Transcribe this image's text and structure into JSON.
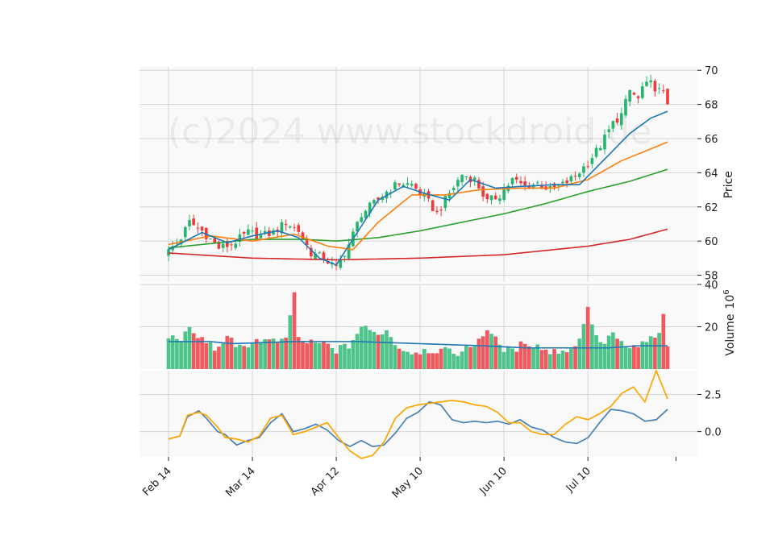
{
  "watermark": "(c)2024 www.stockdroid.de",
  "chart_data": {
    "type": "candlestick",
    "x_ticks": [
      "Feb 14",
      "Mar 14",
      "Apr 12",
      "May 10",
      "Jun 10",
      "Jul 10"
    ],
    "x_tick_index": [
      0,
      20,
      40,
      60,
      80,
      100
    ],
    "n_days": 120,
    "price_panel": {
      "ylabel": "Price",
      "ylim": [
        57.6,
        70.2
      ],
      "yticks": [
        58,
        60,
        62,
        64,
        66,
        68,
        70
      ],
      "anchors": [
        [
          0,
          59.4
        ],
        [
          3,
          60.2
        ],
        [
          5,
          61.1
        ],
        [
          8,
          60.6
        ],
        [
          12,
          59.6
        ],
        [
          15,
          59.8
        ],
        [
          19,
          60.5
        ],
        [
          22,
          60.3
        ],
        [
          25,
          60.5
        ],
        [
          28,
          61.1
        ],
        [
          31,
          60.6
        ],
        [
          34,
          59.3
        ],
        [
          37,
          59.0
        ],
        [
          40,
          58.4
        ],
        [
          43,
          59.8
        ],
        [
          46,
          61.6
        ],
        [
          49,
          62.2
        ],
        [
          52,
          62.9
        ],
        [
          55,
          63.4
        ],
        [
          58,
          63.3
        ],
        [
          61,
          62.6
        ],
        [
          64,
          61.6
        ],
        [
          67,
          62.8
        ],
        [
          70,
          63.9
        ],
        [
          73,
          63.6
        ],
        [
          76,
          62.3
        ],
        [
          79,
          62.7
        ],
        [
          82,
          63.6
        ],
        [
          85,
          63.2
        ],
        [
          88,
          63.4
        ],
        [
          91,
          63.0
        ],
        [
          94,
          63.3
        ],
        [
          97,
          63.8
        ],
        [
          100,
          64.6
        ],
        [
          103,
          65.6
        ],
        [
          106,
          66.9
        ],
        [
          108,
          67.4
        ],
        [
          110,
          68.8
        ],
        [
          112,
          68.3
        ],
        [
          113,
          69.0
        ],
        [
          115,
          69.2
        ],
        [
          118,
          68.6
        ],
        [
          119,
          68.1
        ]
      ],
      "ma_fast": [
        [
          0,
          59.5
        ],
        [
          8,
          60.5
        ],
        [
          14,
          59.9
        ],
        [
          20,
          60.3
        ],
        [
          26,
          60.6
        ],
        [
          31,
          60.2
        ],
        [
          36,
          59.0
        ],
        [
          40,
          58.6
        ],
        [
          45,
          60.5
        ],
        [
          50,
          62.4
        ],
        [
          56,
          63.2
        ],
        [
          61,
          62.8
        ],
        [
          67,
          62.4
        ],
        [
          72,
          63.6
        ],
        [
          78,
          63.1
        ],
        [
          84,
          63.2
        ],
        [
          92,
          63.3
        ],
        [
          98,
          63.3
        ],
        [
          104,
          64.8
        ],
        [
          110,
          66.3
        ],
        [
          115,
          67.2
        ],
        [
          119,
          67.6
        ]
      ],
      "ma_mid": [
        [
          0,
          59.8
        ],
        [
          10,
          60.3
        ],
        [
          20,
          60.0
        ],
        [
          30,
          60.4
        ],
        [
          38,
          59.7
        ],
        [
          44,
          59.5
        ],
        [
          50,
          61.1
        ],
        [
          58,
          62.7
        ],
        [
          66,
          62.7
        ],
        [
          74,
          63.0
        ],
        [
          84,
          63.1
        ],
        [
          92,
          63.1
        ],
        [
          100,
          63.6
        ],
        [
          108,
          64.7
        ],
        [
          114,
          65.3
        ],
        [
          119,
          65.8
        ]
      ],
      "ma_slow": [
        [
          0,
          59.6
        ],
        [
          20,
          60.1
        ],
        [
          32,
          60.1
        ],
        [
          40,
          60.0
        ],
        [
          50,
          60.2
        ],
        [
          60,
          60.6
        ],
        [
          70,
          61.1
        ],
        [
          80,
          61.6
        ],
        [
          90,
          62.2
        ],
        [
          100,
          62.9
        ],
        [
          110,
          63.5
        ],
        [
          119,
          64.2
        ]
      ],
      "ma_long": [
        [
          0,
          59.3
        ],
        [
          20,
          59.0
        ],
        [
          40,
          58.9
        ],
        [
          60,
          59.0
        ],
        [
          80,
          59.2
        ],
        [
          100,
          59.7
        ],
        [
          110,
          60.1
        ],
        [
          119,
          60.7
        ]
      ],
      "colors": {
        "up": "#26b56e",
        "down": "#ef3b3b",
        "ma_fast": "#1f77b4",
        "ma_mid": "#ff7f0e",
        "ma_slow": "#2ca02c",
        "ma_long": "#d62728"
      }
    },
    "volume_panel": {
      "ylabel": "Volume",
      "unit": "10",
      "unit_exp": "6",
      "ylim": [
        0,
        40
      ],
      "yticks": [
        20,
        40
      ],
      "anchors": [
        [
          0,
          15
        ],
        [
          3,
          15
        ],
        [
          5,
          18
        ],
        [
          8,
          14
        ],
        [
          12,
          9
        ],
        [
          14,
          17
        ],
        [
          16,
          9
        ],
        [
          20,
          13
        ],
        [
          22,
          14
        ],
        [
          24,
          13
        ],
        [
          26,
          13
        ],
        [
          28,
          13
        ],
        [
          30,
          37
        ],
        [
          31,
          14
        ],
        [
          34,
          12
        ],
        [
          37,
          12
        ],
        [
          40,
          9
        ],
        [
          43,
          11
        ],
        [
          46,
          20
        ],
        [
          49,
          17
        ],
        [
          52,
          18
        ],
        [
          55,
          10
        ],
        [
          58,
          8
        ],
        [
          61,
          9
        ],
        [
          64,
          9
        ],
        [
          67,
          8
        ],
        [
          70,
          8
        ],
        [
          73,
          12
        ],
        [
          76,
          19
        ],
        [
          79,
          11
        ],
        [
          82,
          8
        ],
        [
          85,
          13
        ],
        [
          88,
          11
        ],
        [
          91,
          8
        ],
        [
          94,
          9
        ],
        [
          97,
          10
        ],
        [
          100,
          28
        ],
        [
          103,
          11
        ],
        [
          106,
          17
        ],
        [
          109,
          9
        ],
        [
          112,
          11
        ],
        [
          115,
          14
        ],
        [
          117,
          16
        ],
        [
          118,
          25
        ],
        [
          119,
          12
        ]
      ],
      "ma_anchors": [
        [
          0,
          13
        ],
        [
          10,
          13
        ],
        [
          15,
          12
        ],
        [
          30,
          13
        ],
        [
          45,
          13
        ],
        [
          60,
          12
        ],
        [
          75,
          11
        ],
        [
          85,
          10
        ],
        [
          95,
          10
        ],
        [
          105,
          10
        ],
        [
          112,
          11
        ],
        [
          119,
          11
        ]
      ],
      "colors": {
        "up": "#4ec48b",
        "down": "#f2595e",
        "ma": "#1f77b4"
      }
    },
    "indicator_panel": {
      "ylim": [
        -1.7,
        4.1
      ],
      "yticks": [
        0.0,
        2.5
      ],
      "ytick_labels": [
        "0.0",
        "2.5"
      ],
      "series": [
        {
          "values": [
            [
              0,
              -0.5
            ],
            [
              3,
              -0.3
            ],
            [
              5,
              1.0
            ],
            [
              8,
              1.4
            ],
            [
              10,
              0.9
            ],
            [
              13,
              0.0
            ],
            [
              15,
              -0.2
            ],
            [
              18,
              -0.9
            ],
            [
              21,
              -0.6
            ],
            [
              24,
              -0.4
            ],
            [
              27,
              0.6
            ],
            [
              30,
              1.2
            ],
            [
              33,
              0.0
            ],
            [
              36,
              0.2
            ],
            [
              39,
              0.5
            ],
            [
              42,
              0.1
            ],
            [
              45,
              -0.6
            ],
            [
              48,
              -1.0
            ],
            [
              51,
              -0.6
            ],
            [
              54,
              -1.0
            ],
            [
              57,
              -0.9
            ],
            [
              60,
              -0.1
            ],
            [
              63,
              0.9
            ],
            [
              66,
              1.3
            ],
            [
              69,
              2.0
            ],
            [
              72,
              1.8
            ],
            [
              75,
              0.8
            ],
            [
              78,
              0.6
            ],
            [
              81,
              0.7
            ],
            [
              84,
              0.6
            ],
            [
              87,
              0.7
            ],
            [
              90,
              0.5
            ],
            [
              93,
              0.8
            ],
            [
              96,
              0.3
            ],
            [
              99,
              0.1
            ],
            [
              102,
              -0.4
            ],
            [
              105,
              -0.7
            ],
            [
              108,
              -0.8
            ],
            [
              111,
              -0.4
            ],
            [
              114,
              0.6
            ],
            [
              117,
              1.5
            ],
            [
              120,
              1.4
            ],
            [
              123,
              1.2
            ],
            [
              126,
              0.7
            ],
            [
              129,
              0.8
            ],
            [
              132,
              1.5
            ]
          ],
          "color": "#4682b4"
        },
        {
          "values": [
            [
              0,
              -0.5
            ],
            [
              3,
              -0.3
            ],
            [
              5,
              1.1
            ],
            [
              8,
              1.3
            ],
            [
              10,
              1.1
            ],
            [
              13,
              0.3
            ],
            [
              15,
              -0.4
            ],
            [
              18,
              -0.5
            ],
            [
              21,
              -0.7
            ],
            [
              24,
              -0.3
            ],
            [
              27,
              0.9
            ],
            [
              30,
              1.1
            ],
            [
              33,
              -0.2
            ],
            [
              36,
              0.0
            ],
            [
              39,
              0.3
            ],
            [
              42,
              0.6
            ],
            [
              45,
              -0.4
            ],
            [
              48,
              -1.3
            ],
            [
              51,
              -1.8
            ],
            [
              54,
              -1.6
            ],
            [
              57,
              -0.7
            ],
            [
              60,
              0.9
            ],
            [
              63,
              1.6
            ],
            [
              66,
              1.8
            ],
            [
              69,
              1.9
            ],
            [
              72,
              2.0
            ],
            [
              75,
              2.1
            ],
            [
              78,
              2.0
            ],
            [
              81,
              1.8
            ],
            [
              84,
              1.7
            ],
            [
              87,
              1.3
            ],
            [
              90,
              0.6
            ],
            [
              93,
              0.6
            ],
            [
              96,
              0.0
            ],
            [
              99,
              -0.2
            ],
            [
              102,
              -0.2
            ],
            [
              105,
              0.5
            ],
            [
              108,
              1.0
            ],
            [
              111,
              0.8
            ],
            [
              114,
              1.2
            ],
            [
              117,
              1.7
            ],
            [
              120,
              2.6
            ],
            [
              123,
              3.0
            ],
            [
              126,
              2.0
            ],
            [
              129,
              4.1
            ],
            [
              132,
              2.2
            ]
          ],
          "color": "#ffa500"
        }
      ]
    },
    "grid": true,
    "background": "#f9f9f9",
    "grid_color": "#d5d5d5"
  }
}
